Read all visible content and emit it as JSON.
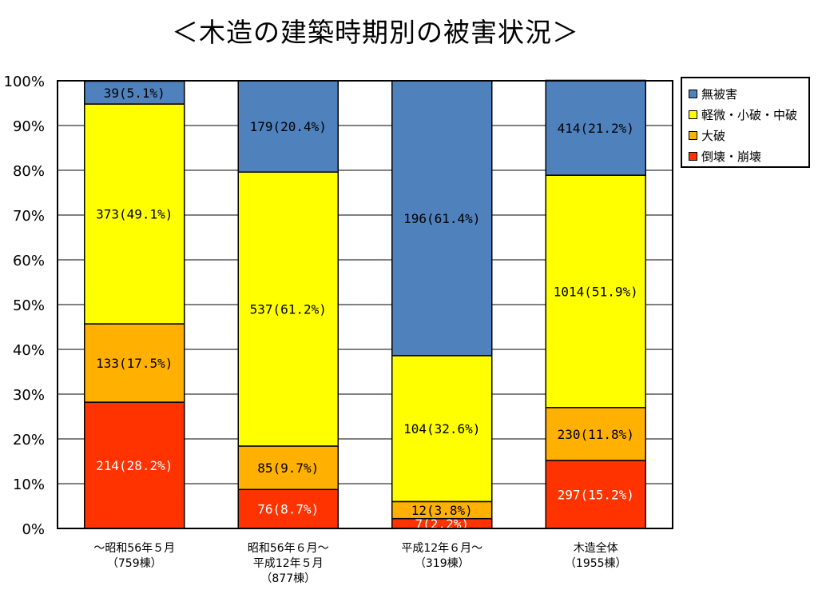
{
  "title": "＜木造の建築時期別の被害状況＞",
  "chart_data": {
    "type": "bar",
    "stacked": true,
    "percent_axis": true,
    "ylim": [
      0,
      100
    ],
    "y_ticks": [
      "0%",
      "10%",
      "20%",
      "30%",
      "40%",
      "50%",
      "60%",
      "70%",
      "80%",
      "90%",
      "100%"
    ],
    "categories": [
      {
        "line1": "～昭和56年５月",
        "line2": "（759棟）",
        "line3": ""
      },
      {
        "line1": "昭和56年６月～",
        "line2": "平成12年５月",
        "line3": "（877棟）"
      },
      {
        "line1": "平成12年６月～",
        "line2": "（319棟）",
        "line3": ""
      },
      {
        "line1": "木造全体",
        "line2": "（1955棟）",
        "line3": ""
      }
    ],
    "series": [
      {
        "name": "倒壊・崩壊",
        "color": "#ff3300",
        "label_color": "#ffffff",
        "values": [
          28.2,
          8.7,
          2.2,
          15.2
        ],
        "labels": [
          "214(28.2%)",
          "76(8.7%)",
          "7(2.2%)",
          "297(15.2%)"
        ]
      },
      {
        "name": "大破",
        "color": "#ffb000",
        "label_color": "#000000",
        "values": [
          17.5,
          9.7,
          3.8,
          11.8
        ],
        "labels": [
          "133(17.5%)",
          "85(9.7%)",
          "12(3.8%)",
          "230(11.8%)"
        ]
      },
      {
        "name": "軽微・小破・中破",
        "color": "#ffff00",
        "label_color": "#000000",
        "values": [
          49.1,
          61.2,
          32.6,
          51.9
        ],
        "labels": [
          "373(49.1%)",
          "537(61.2%)",
          "104(32.6%)",
          "1014(51.9%)"
        ]
      },
      {
        "name": "無被害",
        "color": "#4f81bd",
        "label_color": "#000000",
        "values": [
          5.1,
          20.4,
          61.4,
          21.2
        ],
        "labels": [
          "39(5.1%)",
          "179(20.4%)",
          "196(61.4%)",
          "414(21.2%)"
        ]
      }
    ],
    "legend": {
      "position": "right-top",
      "order": [
        "無被害",
        "軽微・小破・中破",
        "大破",
        "倒壊・崩壊"
      ]
    },
    "grid": true
  }
}
